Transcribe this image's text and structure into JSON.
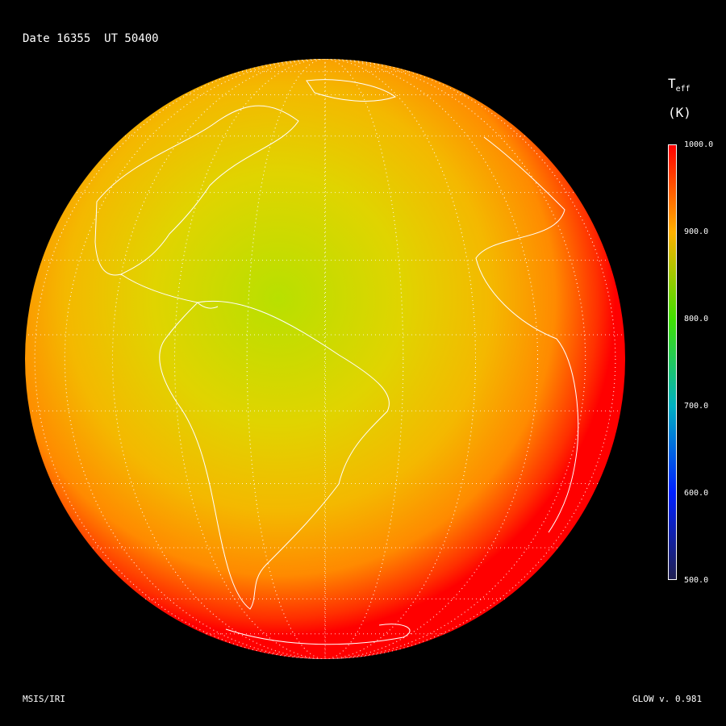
{
  "header": {
    "title": "Date 16355  UT 50400"
  },
  "colorbar": {
    "variable": "T",
    "variable_subscript": "eff",
    "units": "(K)",
    "range": [
      500,
      1000
    ],
    "ticks": [
      "1000.0",
      "900.0",
      "800.0",
      "700.0",
      "600.0",
      "500.0"
    ],
    "colors": [
      "#ff0000",
      "#ffb000",
      "#40e000",
      "#00b0c0",
      "#0020ff",
      "#202050"
    ]
  },
  "map": {
    "projection": "orthographic",
    "quantity": "effective temperature",
    "region": "Americas / Atlantic / Africa",
    "graticule": true,
    "coastlines": true,
    "colors": {
      "center": "#b8e000",
      "mid": "#f0c000",
      "outer": "#ff7a00",
      "limb": "#ff0000"
    }
  },
  "footer": {
    "left": "MSIS/IRI",
    "right": "GLOW v. 0.981"
  }
}
